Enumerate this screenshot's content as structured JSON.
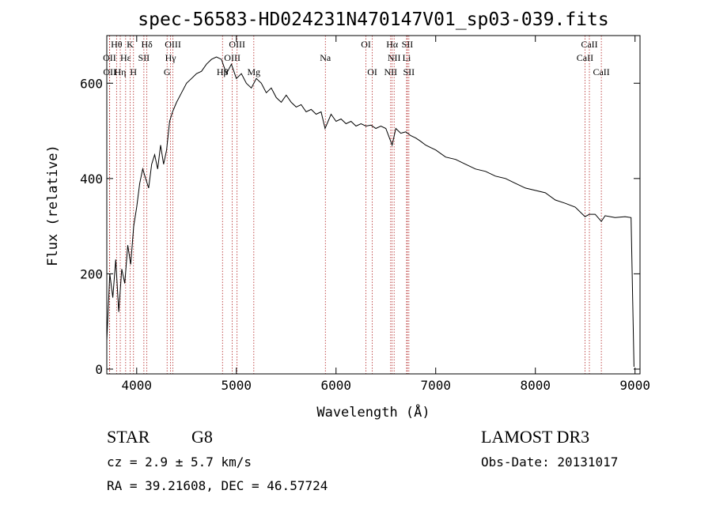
{
  "chart_data": {
    "type": "line",
    "title": "spec-56583-HD024231N470147V01_sp03-039.fits",
    "xlabel": "Wavelength (Å)",
    "ylabel": "Flux (relative)",
    "xlim": [
      3700,
      9050
    ],
    "ylim": [
      -10,
      700
    ],
    "x_ticks": [
      4000,
      5000,
      6000,
      7000,
      8000,
      9000
    ],
    "y_ticks": [
      0,
      200,
      400,
      600
    ],
    "grid": false,
    "series": [
      {
        "x": [
          3700,
          3730,
          3760,
          3790,
          3820,
          3850,
          3880,
          3910,
          3940,
          3970,
          4000,
          4030,
          4060,
          4090,
          4120,
          4150,
          4180,
          4210,
          4240,
          4270,
          4300,
          4330,
          4360,
          4400,
          4450,
          4500,
          4550,
          4600,
          4650,
          4700,
          4750,
          4800,
          4850,
          4900,
          4950,
          5000,
          5050,
          5100,
          5150,
          5200,
          5250,
          5300,
          5350,
          5400,
          5450,
          5500,
          5550,
          5600,
          5650,
          5700,
          5750,
          5800,
          5850,
          5890,
          5950,
          6000,
          6050,
          6100,
          6150,
          6200,
          6250,
          6300,
          6350,
          6400,
          6450,
          6500,
          6563,
          6600,
          6650,
          6700,
          6750,
          6800,
          6850,
          6900,
          6950,
          7000,
          7100,
          7200,
          7300,
          7400,
          7500,
          7600,
          7700,
          7800,
          7900,
          8000,
          8100,
          8200,
          8300,
          8400,
          8498,
          8542,
          8600,
          8662,
          8700,
          8800,
          8900,
          8960,
          8990
        ],
        "y": [
          60,
          200,
          150,
          230,
          120,
          210,
          180,
          260,
          220,
          300,
          340,
          390,
          420,
          400,
          380,
          430,
          450,
          420,
          470,
          430,
          460,
          520,
          540,
          560,
          580,
          600,
          610,
          620,
          625,
          640,
          650,
          655,
          650,
          620,
          640,
          610,
          620,
          600,
          590,
          610,
          600,
          580,
          590,
          570,
          560,
          575,
          560,
          550,
          555,
          540,
          545,
          535,
          540,
          505,
          535,
          520,
          525,
          515,
          520,
          510,
          515,
          510,
          512,
          505,
          510,
          505,
          470,
          505,
          495,
          498,
          490,
          485,
          478,
          470,
          465,
          460,
          445,
          440,
          430,
          420,
          415,
          405,
          400,
          390,
          380,
          375,
          370,
          355,
          348,
          340,
          320,
          325,
          325,
          310,
          322,
          318,
          320,
          318,
          5
        ]
      }
    ],
    "line_markers": [
      {
        "label": "Hθ",
        "x": 3798,
        "row": 0
      },
      {
        "label": "OII",
        "x": 3727,
        "row": 1
      },
      {
        "label": "OII",
        "x": 3729,
        "row": 2
      },
      {
        "label": "Hε",
        "x": 3889,
        "row": 1
      },
      {
        "label": "Hη",
        "x": 3835,
        "row": 2
      },
      {
        "label": "K",
        "x": 3934,
        "row": 0
      },
      {
        "label": "H",
        "x": 3968,
        "row": 2
      },
      {
        "label": "Hδ",
        "x": 4102,
        "row": 0
      },
      {
        "label": "SII",
        "x": 4072,
        "row": 1
      },
      {
        "label": "OIII",
        "x": 4363,
        "row": 0
      },
      {
        "label": "Hγ",
        "x": 4340,
        "row": 1
      },
      {
        "label": "G",
        "x": 4305,
        "row": 2
      },
      {
        "label": "OIII",
        "x": 5007,
        "row": 0
      },
      {
        "label": "OIII",
        "x": 4959,
        "row": 1
      },
      {
        "label": "Hβ",
        "x": 4861,
        "row": 2
      },
      {
        "label": "Mg",
        "x": 5175,
        "row": 2
      },
      {
        "label": "Na",
        "x": 5893,
        "row": 1
      },
      {
        "label": "OI",
        "x": 6300,
        "row": 0
      },
      {
        "label": "OI",
        "x": 6364,
        "row": 2
      },
      {
        "label": "Hα",
        "x": 6563,
        "row": 0
      },
      {
        "label": "NII",
        "x": 6583,
        "row": 1
      },
      {
        "label": "NII",
        "x": 6548,
        "row": 2
      },
      {
        "label": "SII",
        "x": 6716,
        "row": 0
      },
      {
        "label": "Li",
        "x": 6708,
        "row": 1
      },
      {
        "label": "SII",
        "x": 6731,
        "row": 2
      },
      {
        "label": "CaII",
        "x": 8542,
        "row": 0
      },
      {
        "label": "CaII",
        "x": 8498,
        "row": 1
      },
      {
        "label": "CaII",
        "x": 8662,
        "row": 2
      }
    ]
  },
  "info": {
    "object_type": "STAR",
    "subclass": "G8",
    "survey": "LAMOST DR3",
    "redshift": "cz = 2.9 ± 5.7 km/s",
    "obs_date": "Obs-Date: 20131017",
    "coords": "RA =  39.21608, DEC =  46.57724"
  }
}
